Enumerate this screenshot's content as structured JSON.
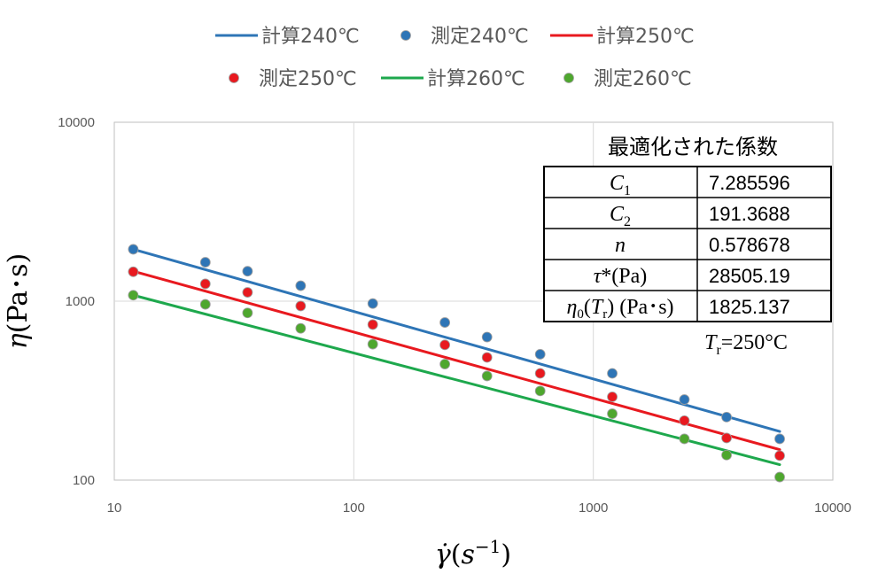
{
  "chart_data": {
    "type": "scatter",
    "xscale": "log",
    "yscale": "log",
    "xlim": [
      10,
      10000
    ],
    "ylim": [
      100,
      10000
    ],
    "grid": true,
    "legend_position": "top",
    "xlabel": "γ̇(s⁻¹)",
    "ylabel": "η(Pa･s)",
    "x_ticks": [
      "10",
      "100",
      "1000",
      "10000"
    ],
    "y_ticks": [
      "100",
      "1000",
      "10000"
    ],
    "series": [
      {
        "name": "計算240℃",
        "kind": "line",
        "color": "#2e75b6",
        "x": [
          12,
          6000
        ],
        "y": [
          1950,
          187
        ]
      },
      {
        "name": "測定240℃",
        "kind": "marker",
        "color": "#2e75b6",
        "x": [
          12,
          24,
          36,
          60,
          120,
          240,
          360,
          600,
          1200,
          2400,
          3600,
          6000
        ],
        "y": [
          1950,
          1650,
          1470,
          1220,
          970,
          760,
          630,
          505,
          395,
          282,
          225,
          170
        ]
      },
      {
        "name": "計算250℃",
        "kind": "line",
        "color": "#e8191f",
        "x": [
          12,
          6000
        ],
        "y": [
          1470,
          148
        ]
      },
      {
        "name": "測定250℃",
        "kind": "marker",
        "color": "#e8191f",
        "x": [
          12,
          24,
          36,
          60,
          120,
          240,
          360,
          600,
          1200,
          2400,
          3600,
          6000
        ],
        "y": [
          1460,
          1250,
          1120,
          940,
          740,
          570,
          485,
          395,
          292,
          215,
          172,
          137
        ]
      },
      {
        "name": "計算260℃",
        "kind": "line",
        "color": "#1ea84d",
        "x": [
          12,
          6000
        ],
        "y": [
          1080,
          122
        ]
      },
      {
        "name": "測定260℃",
        "kind": "marker",
        "color": "#4ea72e",
        "x": [
          12,
          24,
          36,
          60,
          120,
          240,
          360,
          600,
          1200,
          2400,
          3600,
          6000
        ],
        "y": [
          1080,
          960,
          860,
          705,
          575,
          445,
          382,
          315,
          235,
          170,
          138,
          104
        ]
      }
    ],
    "annotation_table": {
      "title": "最適化された係数",
      "rows": [
        {
          "param": "C1",
          "value": "7.285596"
        },
        {
          "param": "C2",
          "value": "191.3688"
        },
        {
          "param": "n",
          "value": "0.578678"
        },
        {
          "param": "τ*(Pa)",
          "value": "28505.19"
        },
        {
          "param": "η0(Tr) (Pa･s)",
          "value": "1825.137"
        }
      ],
      "note": "Tr=250°C"
    }
  }
}
